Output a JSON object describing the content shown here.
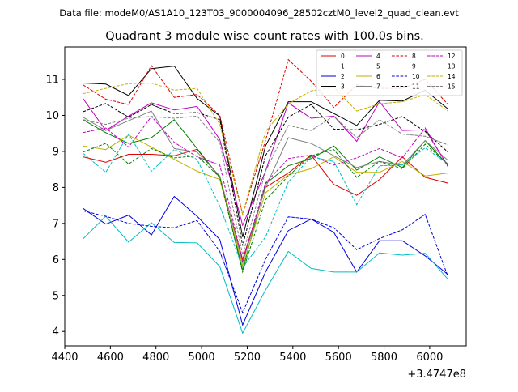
{
  "figure": {
    "suptitle": "Data file: modeM0/AS1A10_123T03_9000004096_28502cztM0_level2_quad_clean.evt",
    "title": "Quadrant 3 module wise count rates with 100.0s bins."
  },
  "chart_data": {
    "type": "line",
    "title": "Quadrant 3 module wise count rates with 100.0s bins.",
    "xlabel": "",
    "ylabel": "",
    "x_offset_label": "+3.4747e8",
    "xlim": [
      4400,
      6160
    ],
    "ylim": [
      3.6,
      11.9
    ],
    "xticks": [
      4400,
      4600,
      4800,
      5000,
      5200,
      5400,
      5600,
      5800,
      6000
    ],
    "yticks": [
      4,
      5,
      6,
      7,
      8,
      9,
      10,
      11
    ],
    "legend_position": "top-right",
    "x": [
      4480,
      4580,
      4680,
      4780,
      4880,
      4980,
      5080,
      5180,
      5280,
      5380,
      5480,
      5580,
      5680,
      5780,
      5880,
      5980,
      6080
    ],
    "series": [
      {
        "name": "0",
        "color": "#e00000",
        "dash": false,
        "values": [
          8.85,
          8.7,
          8.92,
          8.92,
          8.88,
          9.06,
          8.28,
          6.0,
          8.0,
          8.4,
          8.9,
          8.08,
          7.78,
          8.22,
          8.85,
          8.28,
          8.12
        ]
      },
      {
        "name": "1",
        "color": "#008000",
        "dash": false,
        "values": [
          9.88,
          9.52,
          9.22,
          9.38,
          9.88,
          9.08,
          8.28,
          5.7,
          8.1,
          8.6,
          8.8,
          9.15,
          8.48,
          8.85,
          8.55,
          9.3,
          8.62
        ]
      },
      {
        "name": "2",
        "color": "#0000e0",
        "dash": false,
        "values": [
          7.42,
          6.98,
          7.23,
          6.68,
          7.75,
          7.2,
          6.55,
          4.18,
          5.65,
          6.8,
          7.12,
          6.75,
          5.65,
          6.52,
          6.52,
          6.1,
          5.58
        ]
      },
      {
        "name": "3",
        "color": "#000000",
        "dash": false,
        "values": [
          10.9,
          10.87,
          10.55,
          11.3,
          11.37,
          10.47,
          9.98,
          6.62,
          9.15,
          10.38,
          10.38,
          10.05,
          9.72,
          10.42,
          10.4,
          10.7,
          10.18
        ]
      },
      {
        "name": "4",
        "color": "#c000c0",
        "dash": false,
        "values": [
          10.47,
          9.58,
          9.98,
          10.35,
          10.15,
          10.25,
          9.33,
          6.95,
          8.45,
          10.35,
          9.92,
          9.98,
          9.28,
          10.38,
          9.58,
          9.6,
          8.6
        ]
      },
      {
        "name": "5",
        "color": "#00bfbf",
        "dash": false,
        "values": [
          6.57,
          7.2,
          6.48,
          7.02,
          6.47,
          6.46,
          5.8,
          3.95,
          5.15,
          6.22,
          5.75,
          5.65,
          5.65,
          6.18,
          6.12,
          6.17,
          5.45
        ]
      },
      {
        "name": "6",
        "color": "#c0b000",
        "dash": false,
        "values": [
          9.15,
          9.05,
          9.45,
          9.12,
          8.78,
          8.45,
          8.22,
          5.82,
          7.85,
          8.35,
          8.52,
          8.85,
          8.42,
          8.42,
          8.72,
          8.32,
          8.4
        ]
      },
      {
        "name": "7",
        "color": "#808080",
        "dash": false,
        "values": [
          9.95,
          9.58,
          9.85,
          10.12,
          9.08,
          8.98,
          8.32,
          5.92,
          8.0,
          9.38,
          9.22,
          8.88,
          8.55,
          8.72,
          8.62,
          9.3,
          8.75
        ]
      },
      {
        "name": "8",
        "color": "#e00000",
        "dash": true,
        "values": [
          10.85,
          10.45,
          10.3,
          11.38,
          10.5,
          10.58,
          10.0,
          7.25,
          9.3,
          11.55,
          10.95,
          10.22,
          10.85,
          10.75,
          10.75,
          11.0,
          10.3
        ]
      },
      {
        "name": "9",
        "color": "#008000",
        "dash": true,
        "values": [
          8.98,
          9.22,
          8.65,
          9.08,
          8.82,
          8.88,
          8.28,
          5.65,
          7.65,
          8.32,
          8.88,
          9.05,
          8.28,
          8.72,
          8.52,
          9.2,
          8.65
        ]
      },
      {
        "name": "10",
        "color": "#0000e0",
        "dash": true,
        "values": [
          7.35,
          7.2,
          7.0,
          6.92,
          6.88,
          7.08,
          6.22,
          4.52,
          6.0,
          7.18,
          7.12,
          6.88,
          6.27,
          6.58,
          6.82,
          7.25,
          5.52
        ]
      },
      {
        "name": "11",
        "color": "#000000",
        "dash": true,
        "values": [
          10.1,
          10.33,
          9.95,
          10.3,
          10.05,
          10.08,
          9.88,
          6.38,
          8.88,
          9.95,
          10.3,
          9.62,
          9.6,
          9.75,
          9.97,
          9.55,
          8.98
        ]
      },
      {
        "name": "12",
        "color": "#c000c0",
        "dash": true,
        "values": [
          9.52,
          9.65,
          9.12,
          9.97,
          9.25,
          8.85,
          8.62,
          5.95,
          8.12,
          8.8,
          8.9,
          8.62,
          8.82,
          9.08,
          8.82,
          9.65,
          8.57
        ]
      },
      {
        "name": "13",
        "color": "#00bfbf",
        "dash": true,
        "values": [
          8.95,
          8.42,
          9.48,
          8.45,
          9.05,
          8.78,
          7.48,
          5.78,
          6.62,
          8.15,
          8.85,
          8.72,
          7.52,
          8.6,
          8.62,
          9.1,
          8.65
        ]
      },
      {
        "name": "14",
        "color": "#c0b000",
        "dash": true,
        "values": [
          10.6,
          10.75,
          10.88,
          10.9,
          10.7,
          10.75,
          9.75,
          7.25,
          9.55,
          10.32,
          10.68,
          10.78,
          10.12,
          10.32,
          10.38,
          10.58,
          10.12
        ]
      },
      {
        "name": "15",
        "color": "#808080",
        "dash": true,
        "values": [
          9.88,
          9.75,
          9.92,
          9.97,
          9.92,
          9.98,
          9.25,
          6.12,
          8.45,
          9.72,
          9.58,
          9.98,
          9.38,
          9.88,
          9.48,
          9.42,
          9.18
        ]
      }
    ]
  }
}
